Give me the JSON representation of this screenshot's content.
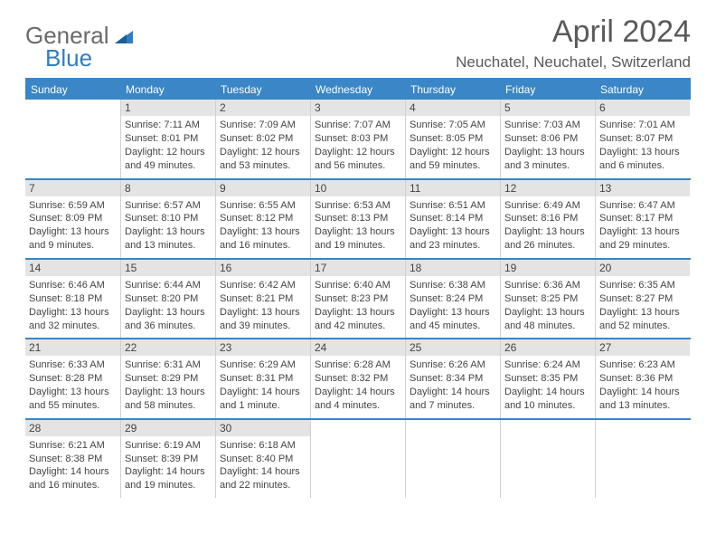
{
  "logo": {
    "word1": "General",
    "word2": "Blue",
    "tri_color": "#2f7ec2"
  },
  "title": "April 2024",
  "location": "Neuchatel, Neuchatel, Switzerland",
  "day_labels": [
    "Sunday",
    "Monday",
    "Tuesday",
    "Wednesday",
    "Thursday",
    "Friday",
    "Saturday"
  ],
  "colors": {
    "header_bg": "#3a86c6",
    "header_text": "#ffffff",
    "daynum_bg": "#e4e4e4",
    "border": "#3a86c6",
    "cell_border": "#d0d0d0",
    "body_text": "#444444"
  },
  "weeks": [
    [
      {
        "day": "",
        "lines": []
      },
      {
        "day": "1",
        "lines": [
          "Sunrise: 7:11 AM",
          "Sunset: 8:01 PM",
          "Daylight: 12 hours",
          "and 49 minutes."
        ]
      },
      {
        "day": "2",
        "lines": [
          "Sunrise: 7:09 AM",
          "Sunset: 8:02 PM",
          "Daylight: 12 hours",
          "and 53 minutes."
        ]
      },
      {
        "day": "3",
        "lines": [
          "Sunrise: 7:07 AM",
          "Sunset: 8:03 PM",
          "Daylight: 12 hours",
          "and 56 minutes."
        ]
      },
      {
        "day": "4",
        "lines": [
          "Sunrise: 7:05 AM",
          "Sunset: 8:05 PM",
          "Daylight: 12 hours",
          "and 59 minutes."
        ]
      },
      {
        "day": "5",
        "lines": [
          "Sunrise: 7:03 AM",
          "Sunset: 8:06 PM",
          "Daylight: 13 hours",
          "and 3 minutes."
        ]
      },
      {
        "day": "6",
        "lines": [
          "Sunrise: 7:01 AM",
          "Sunset: 8:07 PM",
          "Daylight: 13 hours",
          "and 6 minutes."
        ]
      }
    ],
    [
      {
        "day": "7",
        "lines": [
          "Sunrise: 6:59 AM",
          "Sunset: 8:09 PM",
          "Daylight: 13 hours",
          "and 9 minutes."
        ]
      },
      {
        "day": "8",
        "lines": [
          "Sunrise: 6:57 AM",
          "Sunset: 8:10 PM",
          "Daylight: 13 hours",
          "and 13 minutes."
        ]
      },
      {
        "day": "9",
        "lines": [
          "Sunrise: 6:55 AM",
          "Sunset: 8:12 PM",
          "Daylight: 13 hours",
          "and 16 minutes."
        ]
      },
      {
        "day": "10",
        "lines": [
          "Sunrise: 6:53 AM",
          "Sunset: 8:13 PM",
          "Daylight: 13 hours",
          "and 19 minutes."
        ]
      },
      {
        "day": "11",
        "lines": [
          "Sunrise: 6:51 AM",
          "Sunset: 8:14 PM",
          "Daylight: 13 hours",
          "and 23 minutes."
        ]
      },
      {
        "day": "12",
        "lines": [
          "Sunrise: 6:49 AM",
          "Sunset: 8:16 PM",
          "Daylight: 13 hours",
          "and 26 minutes."
        ]
      },
      {
        "day": "13",
        "lines": [
          "Sunrise: 6:47 AM",
          "Sunset: 8:17 PM",
          "Daylight: 13 hours",
          "and 29 minutes."
        ]
      }
    ],
    [
      {
        "day": "14",
        "lines": [
          "Sunrise: 6:46 AM",
          "Sunset: 8:18 PM",
          "Daylight: 13 hours",
          "and 32 minutes."
        ]
      },
      {
        "day": "15",
        "lines": [
          "Sunrise: 6:44 AM",
          "Sunset: 8:20 PM",
          "Daylight: 13 hours",
          "and 36 minutes."
        ]
      },
      {
        "day": "16",
        "lines": [
          "Sunrise: 6:42 AM",
          "Sunset: 8:21 PM",
          "Daylight: 13 hours",
          "and 39 minutes."
        ]
      },
      {
        "day": "17",
        "lines": [
          "Sunrise: 6:40 AM",
          "Sunset: 8:23 PM",
          "Daylight: 13 hours",
          "and 42 minutes."
        ]
      },
      {
        "day": "18",
        "lines": [
          "Sunrise: 6:38 AM",
          "Sunset: 8:24 PM",
          "Daylight: 13 hours",
          "and 45 minutes."
        ]
      },
      {
        "day": "19",
        "lines": [
          "Sunrise: 6:36 AM",
          "Sunset: 8:25 PM",
          "Daylight: 13 hours",
          "and 48 minutes."
        ]
      },
      {
        "day": "20",
        "lines": [
          "Sunrise: 6:35 AM",
          "Sunset: 8:27 PM",
          "Daylight: 13 hours",
          "and 52 minutes."
        ]
      }
    ],
    [
      {
        "day": "21",
        "lines": [
          "Sunrise: 6:33 AM",
          "Sunset: 8:28 PM",
          "Daylight: 13 hours",
          "and 55 minutes."
        ]
      },
      {
        "day": "22",
        "lines": [
          "Sunrise: 6:31 AM",
          "Sunset: 8:29 PM",
          "Daylight: 13 hours",
          "and 58 minutes."
        ]
      },
      {
        "day": "23",
        "lines": [
          "Sunrise: 6:29 AM",
          "Sunset: 8:31 PM",
          "Daylight: 14 hours",
          "and 1 minute."
        ]
      },
      {
        "day": "24",
        "lines": [
          "Sunrise: 6:28 AM",
          "Sunset: 8:32 PM",
          "Daylight: 14 hours",
          "and 4 minutes."
        ]
      },
      {
        "day": "25",
        "lines": [
          "Sunrise: 6:26 AM",
          "Sunset: 8:34 PM",
          "Daylight: 14 hours",
          "and 7 minutes."
        ]
      },
      {
        "day": "26",
        "lines": [
          "Sunrise: 6:24 AM",
          "Sunset: 8:35 PM",
          "Daylight: 14 hours",
          "and 10 minutes."
        ]
      },
      {
        "day": "27",
        "lines": [
          "Sunrise: 6:23 AM",
          "Sunset: 8:36 PM",
          "Daylight: 14 hours",
          "and 13 minutes."
        ]
      }
    ],
    [
      {
        "day": "28",
        "lines": [
          "Sunrise: 6:21 AM",
          "Sunset: 8:38 PM",
          "Daylight: 14 hours",
          "and 16 minutes."
        ]
      },
      {
        "day": "29",
        "lines": [
          "Sunrise: 6:19 AM",
          "Sunset: 8:39 PM",
          "Daylight: 14 hours",
          "and 19 minutes."
        ]
      },
      {
        "day": "30",
        "lines": [
          "Sunrise: 6:18 AM",
          "Sunset: 8:40 PM",
          "Daylight: 14 hours",
          "and 22 minutes."
        ]
      },
      {
        "day": "",
        "lines": []
      },
      {
        "day": "",
        "lines": []
      },
      {
        "day": "",
        "lines": []
      },
      {
        "day": "",
        "lines": []
      }
    ]
  ]
}
